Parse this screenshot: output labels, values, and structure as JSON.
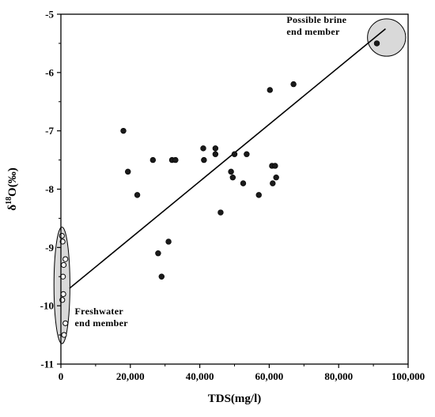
{
  "chart_data": {
    "type": "scatter",
    "title": "",
    "xlabel": "TDS(mg/l)",
    "ylabel": "δ18O(‰)",
    "ylabel_parts": {
      "delta": "δ",
      "sup": "18",
      "rest": "O(‰)"
    },
    "xlim": [
      0,
      100000
    ],
    "ylim": [
      -11,
      -5
    ],
    "xticks": [
      0,
      20000,
      40000,
      60000,
      80000,
      100000
    ],
    "xtick_labels": [
      "0",
      "20,000",
      "40,000",
      "60,000",
      "80,000",
      "100,000"
    ],
    "yticks": [
      -11,
      -10,
      -9,
      -8,
      -7,
      -6,
      -5
    ],
    "ytick_labels": [
      "-11",
      "-10",
      "-9",
      "-8",
      "-7",
      "-6",
      "-5"
    ],
    "grid": false,
    "series": [
      {
        "marker": "filled-circle",
        "points": [
          [
            18000,
            -7.0
          ],
          [
            19300,
            -7.7
          ],
          [
            22000,
            -8.1
          ],
          [
            26500,
            -7.5
          ],
          [
            28000,
            -9.1
          ],
          [
            29000,
            -9.5
          ],
          [
            31000,
            -8.9
          ],
          [
            32000,
            -7.5
          ],
          [
            33000,
            -7.5
          ],
          [
            41000,
            -7.3
          ],
          [
            41200,
            -7.5
          ],
          [
            44500,
            -7.3
          ],
          [
            44500,
            -7.4
          ],
          [
            46000,
            -8.4
          ],
          [
            49000,
            -7.7
          ],
          [
            49500,
            -7.8
          ],
          [
            50000,
            -7.4
          ],
          [
            52500,
            -7.9
          ],
          [
            53500,
            -7.4
          ],
          [
            57000,
            -8.1
          ],
          [
            60200,
            -6.3
          ],
          [
            60800,
            -7.6
          ],
          [
            61000,
            -7.9
          ],
          [
            61700,
            -7.6
          ],
          [
            62000,
            -7.8
          ],
          [
            67000,
            -6.2
          ],
          [
            91000,
            -5.5
          ]
        ]
      },
      {
        "marker": "open-circle",
        "points": [
          [
            300,
            -8.8
          ],
          [
            500,
            -8.9
          ],
          [
            1300,
            -9.2
          ],
          [
            800,
            -9.3
          ],
          [
            600,
            -9.5
          ],
          [
            700,
            -9.8
          ],
          [
            400,
            -9.9
          ],
          [
            1300,
            -10.3
          ],
          [
            900,
            -10.5
          ]
        ]
      }
    ],
    "regression_line": {
      "from": [
        2500,
        -9.7
      ],
      "to": [
        93500,
        -5.25
      ]
    },
    "ellipses": [
      {
        "center": [
          300,
          -9.65
        ],
        "radii": [
          2300,
          1.0
        ]
      },
      {
        "center": [
          93800,
          -5.4
        ],
        "radii": [
          5500,
          0.32
        ]
      }
    ],
    "annotations": [
      {
        "lines": [
          "Possible brine",
          "end member"
        ],
        "anchor": [
          65000,
          -5.15
        ]
      },
      {
        "lines": [
          "Freshwater",
          "end member"
        ],
        "anchor": [
          4000,
          -10.15
        ]
      }
    ],
    "colors": {
      "filled": "#1a1a1a",
      "ellipse_fill": "#d9d9d9",
      "axis": "#000000"
    }
  }
}
